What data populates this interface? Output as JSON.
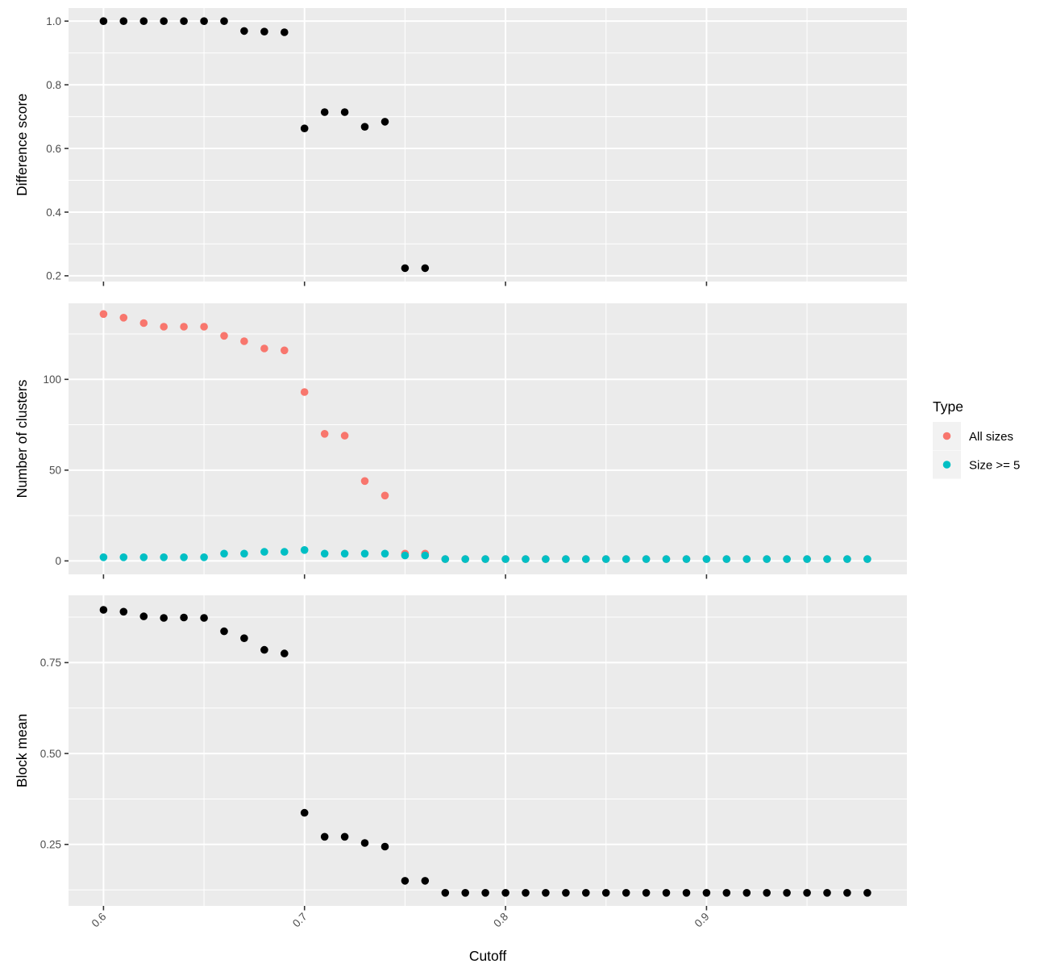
{
  "chart_data": {
    "type": "scatter",
    "title": "",
    "xlabel": "Cutoff",
    "xlim": [
      0.5826,
      0.9997
    ],
    "x_ticks": [
      {
        "value": 0.6,
        "label": "0.6"
      },
      {
        "value": 0.7,
        "label": "0.7"
      },
      {
        "value": 0.8,
        "label": "0.8"
      },
      {
        "value": 0.9,
        "label": "0.9"
      }
    ],
    "x_minor": [
      0.65,
      0.75,
      0.85,
      0.95
    ],
    "cutoffs": [
      0.6,
      0.61,
      0.62,
      0.63,
      0.64,
      0.65,
      0.66,
      0.67,
      0.68,
      0.69,
      0.7,
      0.71,
      0.72,
      0.73,
      0.74,
      0.75,
      0.76,
      0.77,
      0.78,
      0.79,
      0.8,
      0.81,
      0.82,
      0.83,
      0.84,
      0.85,
      0.86,
      0.87,
      0.88,
      0.89,
      0.9,
      0.91,
      0.92,
      0.93,
      0.94,
      0.95,
      0.96,
      0.97,
      0.98
    ],
    "panels": [
      {
        "ylabel": "Difference score",
        "ylim": [
          0.182,
          1.041
        ],
        "y_ticks": [
          {
            "value": 0.2,
            "label": "0.2"
          },
          {
            "value": 0.4,
            "label": "0.4"
          },
          {
            "value": 0.6,
            "label": "0.6"
          },
          {
            "value": 0.8,
            "label": "0.8"
          },
          {
            "value": 1.0,
            "label": "1.0"
          }
        ],
        "y_minor": [
          0.3,
          0.5,
          0.7,
          0.9
        ],
        "series": [
          {
            "name": "difference-score",
            "color": "#000000",
            "x": [
              0.6,
              0.61,
              0.62,
              0.63,
              0.64,
              0.65,
              0.66,
              0.67,
              0.68,
              0.69,
              0.7,
              0.71,
              0.72,
              0.73,
              0.74,
              0.75,
              0.76
            ],
            "y": [
              1.0,
              1.0,
              1.0,
              1.0,
              1.0,
              1.0,
              1.0,
              0.969,
              0.967,
              0.965,
              0.663,
              0.714,
              0.714,
              0.668,
              0.684,
              0.224,
              0.224
            ]
          }
        ]
      },
      {
        "ylabel": "Number of clusters",
        "ylim": [
          -7.4,
          141.9
        ],
        "y_ticks": [
          {
            "value": 0,
            "label": "0"
          },
          {
            "value": 50,
            "label": "50"
          },
          {
            "value": 100,
            "label": "100"
          }
        ],
        "y_minor": [
          25,
          75,
          125
        ],
        "series": [
          {
            "name": "All sizes",
            "color": "#F8766D",
            "x": [
              0.6,
              0.61,
              0.62,
              0.63,
              0.64,
              0.65,
              0.66,
              0.67,
              0.68,
              0.69,
              0.7,
              0.71,
              0.72,
              0.73,
              0.74,
              0.75,
              0.76,
              0.77,
              0.78,
              0.79,
              0.8,
              0.81,
              0.82,
              0.83,
              0.84,
              0.85,
              0.86,
              0.87,
              0.88,
              0.89,
              0.9,
              0.91,
              0.92,
              0.93,
              0.94,
              0.95,
              0.96,
              0.97,
              0.98
            ],
            "y": [
              136,
              134,
              131,
              129,
              129,
              129,
              124,
              121,
              117,
              116,
              93,
              70,
              69,
              44,
              36,
              4,
              4,
              1,
              1,
              1,
              1,
              1,
              1,
              1,
              1,
              1,
              1,
              1,
              1,
              1,
              1,
              1,
              1,
              1,
              1,
              1,
              1,
              1,
              1
            ]
          },
          {
            "name": "Size >= 5",
            "color": "#00BFC4",
            "x": [
              0.6,
              0.61,
              0.62,
              0.63,
              0.64,
              0.65,
              0.66,
              0.67,
              0.68,
              0.69,
              0.7,
              0.71,
              0.72,
              0.73,
              0.74,
              0.75,
              0.76,
              0.77,
              0.78,
              0.79,
              0.8,
              0.81,
              0.82,
              0.83,
              0.84,
              0.85,
              0.86,
              0.87,
              0.88,
              0.89,
              0.9,
              0.91,
              0.92,
              0.93,
              0.94,
              0.95,
              0.96,
              0.97,
              0.98
            ],
            "y": [
              2,
              2,
              2,
              2,
              2,
              2,
              4,
              4,
              5,
              5,
              6,
              4,
              4,
              4,
              4,
              3,
              3,
              1,
              1,
              1,
              1,
              1,
              1,
              1,
              1,
              1,
              1,
              1,
              1,
              1,
              1,
              1,
              1,
              1,
              1,
              1,
              1,
              1,
              1
            ]
          }
        ]
      },
      {
        "ylabel": "Block mean",
        "ylim": [
          0.081,
          0.935
        ],
        "y_ticks": [
          {
            "value": 0.25,
            "label": "0.25"
          },
          {
            "value": 0.5,
            "label": "0.50"
          },
          {
            "value": 0.75,
            "label": "0.75"
          }
        ],
        "y_minor": [
          0.125,
          0.375,
          0.625,
          0.875
        ],
        "series": [
          {
            "name": "block-mean",
            "color": "#000000",
            "x": [
              0.6,
              0.61,
              0.62,
              0.63,
              0.64,
              0.65,
              0.66,
              0.67,
              0.68,
              0.69,
              0.7,
              0.71,
              0.72,
              0.73,
              0.74,
              0.75,
              0.76,
              0.77,
              0.78,
              0.79,
              0.8,
              0.81,
              0.82,
              0.83,
              0.84,
              0.85,
              0.86,
              0.87,
              0.88,
              0.89,
              0.9,
              0.91,
              0.92,
              0.93,
              0.94,
              0.95,
              0.96,
              0.97,
              0.98
            ],
            "y": [
              0.895,
              0.89,
              0.877,
              0.873,
              0.874,
              0.873,
              0.836,
              0.817,
              0.785,
              0.775,
              0.337,
              0.271,
              0.271,
              0.254,
              0.244,
              0.15,
              0.15,
              0.117,
              0.117,
              0.117,
              0.117,
              0.117,
              0.117,
              0.117,
              0.117,
              0.117,
              0.117,
              0.117,
              0.117,
              0.117,
              0.117,
              0.117,
              0.117,
              0.117,
              0.117,
              0.117,
              0.117,
              0.117,
              0.117
            ]
          }
        ]
      }
    ],
    "legend": {
      "title": "Type",
      "position": "right",
      "entries": [
        {
          "label": "All sizes",
          "color": "#F8766D"
        },
        {
          "label": "Size >= 5",
          "color": "#00BFC4"
        }
      ]
    },
    "grid": true
  },
  "style": {
    "figure_bg": "#FFFFFF",
    "panel_bg": "#EBEBEB",
    "grid_color": "#FFFFFF",
    "tick_mark_color": "#333333",
    "tick_label_color": "#4D4D4D",
    "axis_title_color": "#000000",
    "legend_key_bg": "#F2F2F2",
    "point_black": "#000000",
    "series_red": "#F8766D",
    "series_teal": "#00BFC4"
  }
}
